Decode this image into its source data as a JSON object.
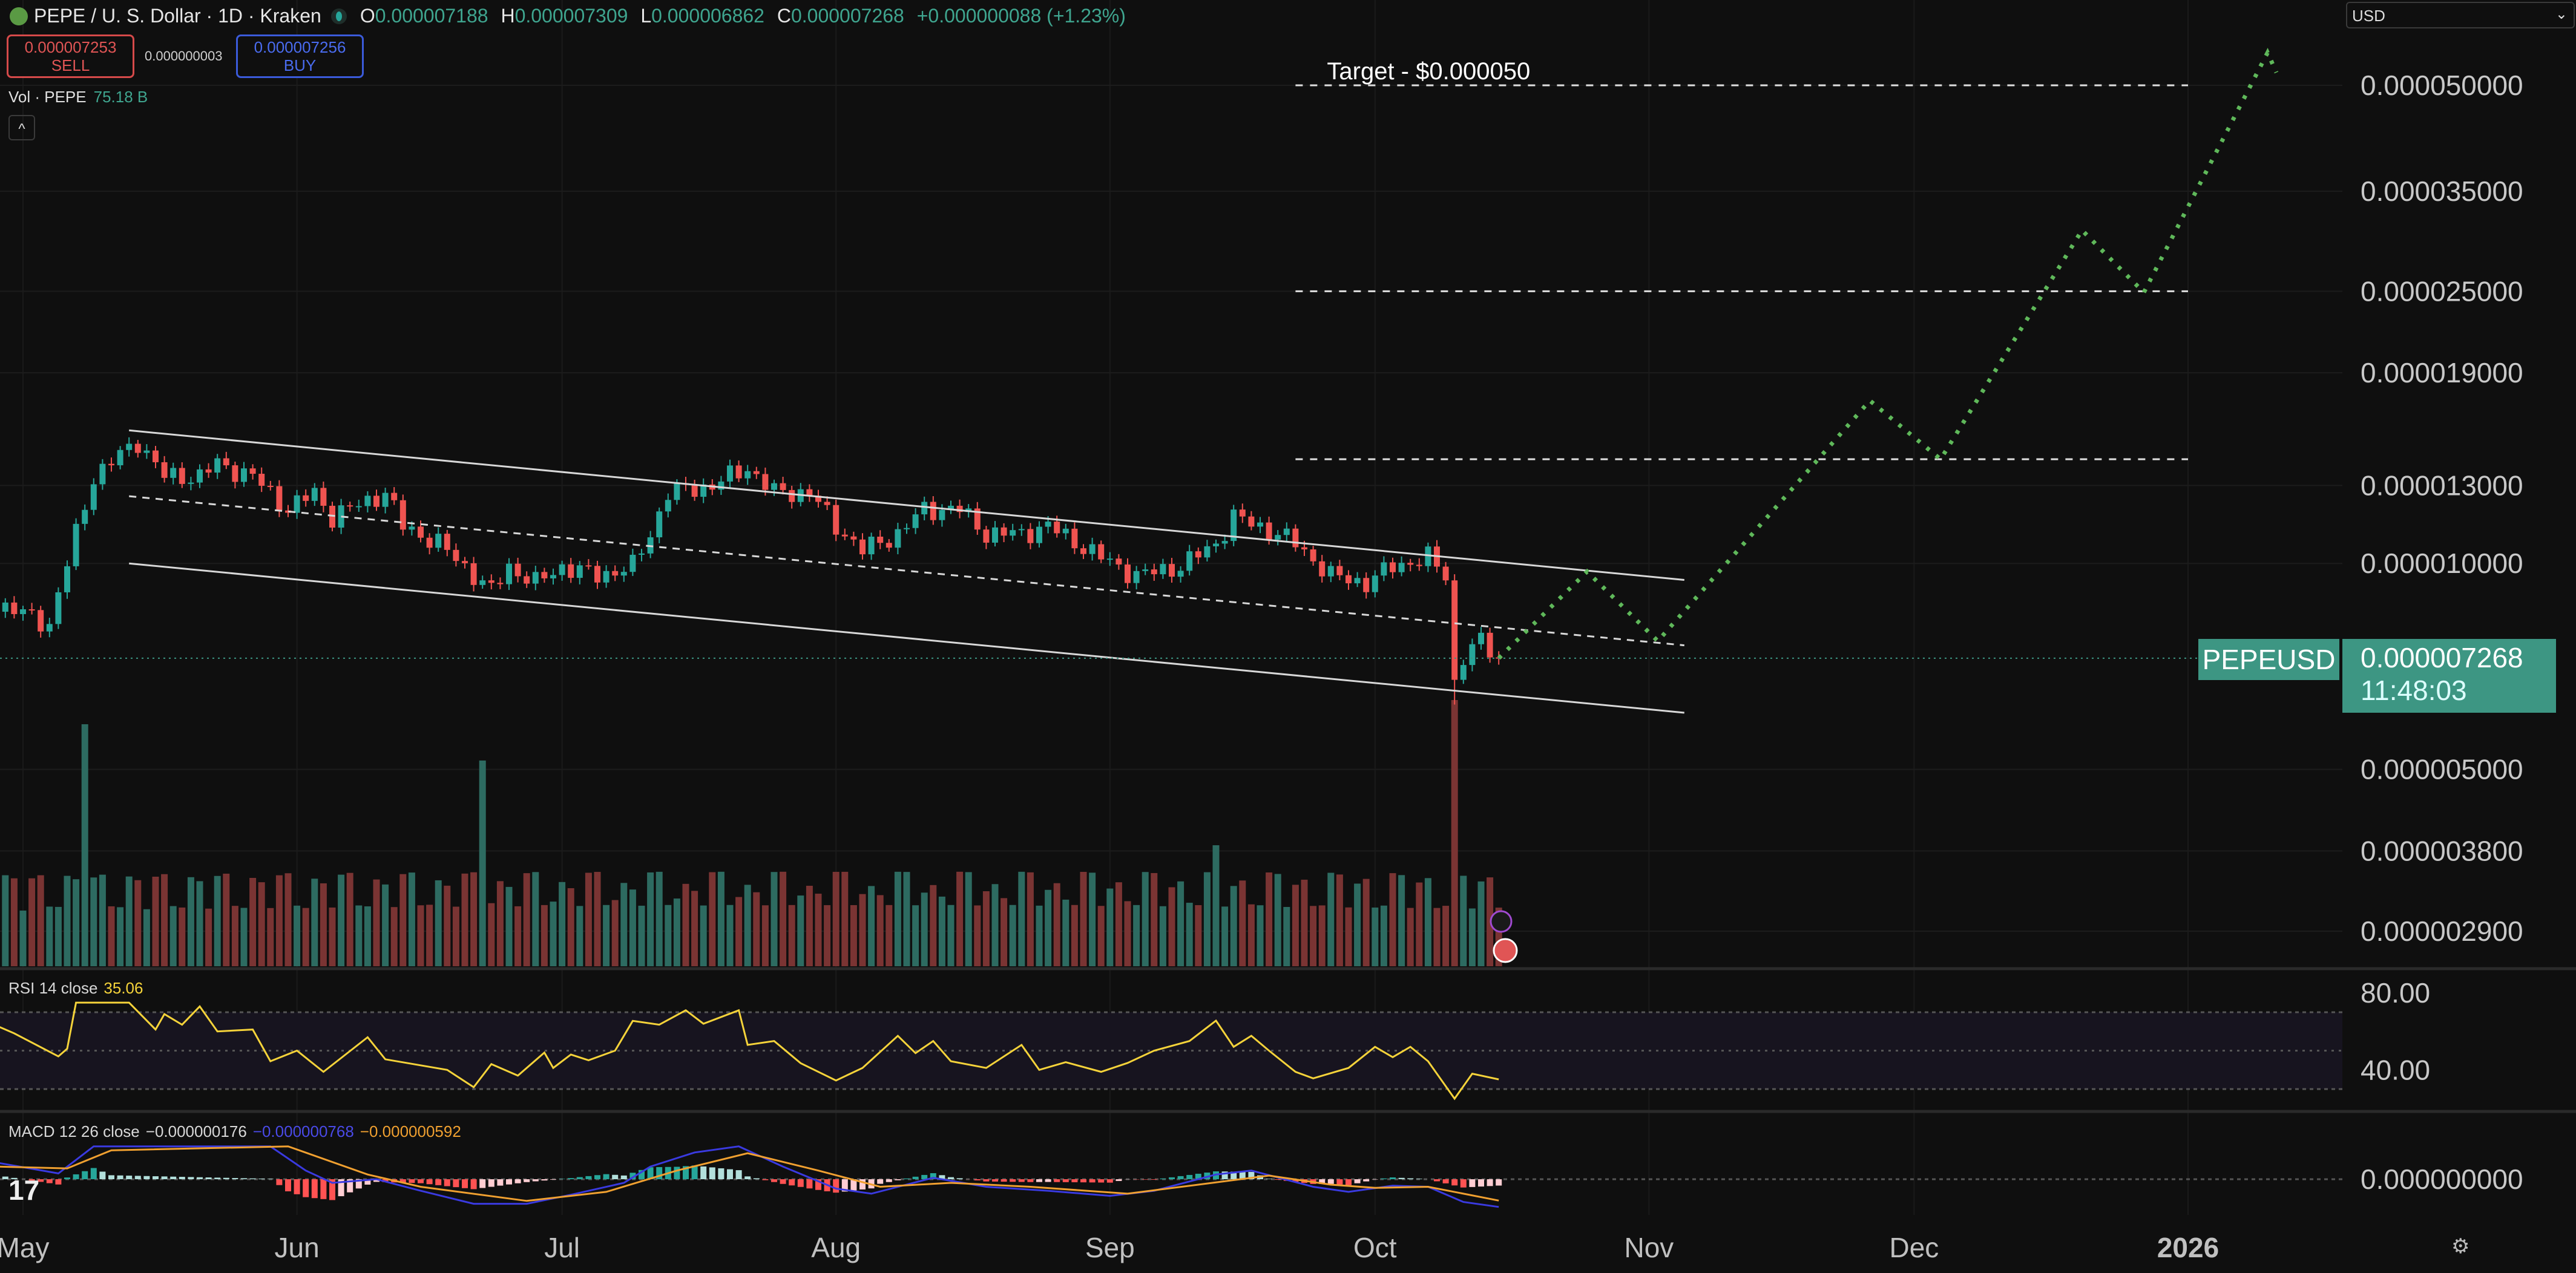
{
  "header": {
    "title": "PEPE / U. S. Dollar · 1D · Kraken",
    "ohlc": [
      {
        "key": "O",
        "value": "0.000007188"
      },
      {
        "key": "H",
        "value": "0.000007309"
      },
      {
        "key": "L",
        "value": "0.000006862"
      },
      {
        "key": "C",
        "value": "0.000007268"
      }
    ],
    "change": "+0.000000088 (+1.23%)",
    "sell_price": "0.000007253",
    "sell_label": "SELL",
    "spread": "0.000000003",
    "buy_price": "0.000007256",
    "buy_label": "BUY",
    "volume_label": "Vol · PEPE",
    "volume_value": "75.18 B",
    "collapse_icon": "chevron-up-icon"
  },
  "currency_select": "USD",
  "symbol_badge": "PEPEUSD",
  "last_price": "0.000007268",
  "countdown": "11:48:03",
  "rsi_legend": {
    "label": "RSI 14 close",
    "value": "35.06"
  },
  "macd_legend": {
    "label": "MACD 12 26 close",
    "hist": "−0.000000176",
    "macd": "−0.000000768",
    "signal": "−0.000000592"
  },
  "colors": {
    "up": "#26a69a",
    "down": "#ef5350",
    "projection": "#5fb85a",
    "rsi": "#f5d33a",
    "macd": "#3a3ae0",
    "signal": "#f0a030"
  },
  "chart_data": {
    "type": "candlestick",
    "scale": "log",
    "price_axis_labels": [
      "0.000050000",
      "0.000035000",
      "0.000025000",
      "0.000019000",
      "0.000013000",
      "0.000010000",
      "0.000005000",
      "0.000003800",
      "0.000002900"
    ],
    "time_axis_labels": [
      {
        "label": "May",
        "date": "2025-05-01"
      },
      {
        "label": "Jun",
        "date": "2025-06-01"
      },
      {
        "label": "Jul",
        "date": "2025-07-01"
      },
      {
        "label": "Aug",
        "date": "2025-08-01"
      },
      {
        "label": "Sep",
        "date": "2025-09-01"
      },
      {
        "label": "Oct",
        "date": "2025-10-01"
      },
      {
        "label": "Nov",
        "date": "2025-11-01"
      },
      {
        "label": "Dec",
        "date": "2025-12-01"
      },
      {
        "label": "2026",
        "date": "2026-01-01"
      }
    ],
    "close_path": [
      [
        "2025-04-27",
        8.85e-06
      ],
      [
        "2025-05-04",
        8.15e-06
      ],
      [
        "2025-05-07",
        1.105e-05
      ],
      [
        "2025-05-09",
        1.34e-05
      ],
      [
        "2025-05-14",
        1.51e-05
      ],
      [
        "2025-05-17",
        1.34e-05
      ],
      [
        "2025-05-21",
        1.34e-05
      ],
      [
        "2025-05-23",
        1.4e-05
      ],
      [
        "2025-05-27",
        1.34e-05
      ],
      [
        "2025-05-31",
        1.2e-05
      ],
      [
        "2025-06-03",
        1.27e-05
      ],
      [
        "2025-06-05",
        1.17e-05
      ],
      [
        "2025-06-11",
        1.27e-05
      ],
      [
        "2025-06-13",
        1.135e-05
      ],
      [
        "2025-06-17",
        1.07e-05
      ],
      [
        "2025-06-20",
        9.9e-06
      ],
      [
        "2025-06-23",
        9.1e-06
      ],
      [
        "2025-06-25",
        9.9e-06
      ],
      [
        "2025-06-28",
        9.36e-06
      ],
      [
        "2025-07-01",
        9.9e-06
      ],
      [
        "2025-07-05",
        9.6e-06
      ],
      [
        "2025-07-09",
        9.9e-06
      ],
      [
        "2025-07-11",
        1.105e-05
      ],
      [
        "2025-07-13",
        1.27e-05
      ],
      [
        "2025-07-18",
        1.3e-05
      ],
      [
        "2025-07-22",
        1.38e-05
      ],
      [
        "2025-07-25",
        1.27e-05
      ],
      [
        "2025-07-29",
        1.27e-05
      ],
      [
        "2025-08-01",
        1.135e-05
      ],
      [
        "2025-08-04",
        1.045e-05
      ],
      [
        "2025-08-08",
        1.105e-05
      ],
      [
        "2025-08-11",
        1.2e-05
      ],
      [
        "2025-08-15",
        1.2e-05
      ],
      [
        "2025-08-18",
        1.105e-05
      ],
      [
        "2025-08-22",
        1.105e-05
      ],
      [
        "2025-08-25",
        1.135e-05
      ],
      [
        "2025-08-31",
        1.02e-05
      ],
      [
        "2025-09-04",
        9.6e-06
      ],
      [
        "2025-09-09",
        9.9e-06
      ],
      [
        "2025-09-13",
        1.07e-05
      ],
      [
        "2025-09-15",
        1.17e-05
      ],
      [
        "2025-09-20",
        1.105e-05
      ],
      [
        "2025-09-22",
        1.07e-05
      ],
      [
        "2025-09-26",
        9.6e-06
      ],
      [
        "2025-09-30",
        9.36e-06
      ],
      [
        "2025-10-03",
        9.9e-06
      ],
      [
        "2025-10-07",
        1.02e-05
      ],
      [
        "2025-10-09",
        9.6e-06
      ],
      [
        "2025-10-10",
        6.7e-06
      ],
      [
        "2025-10-11",
        7.3e-06
      ],
      [
        "2025-10-13",
        7.7e-06
      ],
      [
        "2025-10-15",
        7.268e-06
      ]
    ],
    "volume_spikes": [
      [
        "2025-05-08",
        1.0
      ],
      [
        "2025-06-22",
        0.85
      ],
      [
        "2025-09-13",
        0.5
      ],
      [
        "2025-10-10",
        1.1
      ]
    ],
    "last_price_value": 7.268e-06,
    "channel": {
      "upper": [
        [
          "2025-05-13",
          1.565e-05
        ],
        [
          "2025-11-05",
          9.46e-06
        ]
      ],
      "middle": [
        [
          "2025-05-13",
          1.254e-05
        ],
        [
          "2025-11-05",
          7.59e-06
        ]
      ],
      "lower": [
        [
          "2025-05-13",
          1e-05
        ],
        [
          "2025-11-05",
          6.05e-06
        ]
      ]
    },
    "target_levels": [
      {
        "price": 5e-05,
        "from": "2025-09-22",
        "to": "2026-01-01",
        "label": "Target - $0.000050"
      },
      {
        "price": 2.5e-05,
        "from": "2025-09-22",
        "to": "2026-01-01"
      },
      {
        "price": 1.42e-05,
        "from": "2025-09-22",
        "to": "2026-01-01"
      }
    ],
    "projection_path": [
      [
        "2025-10-15",
        7.27e-06
      ],
      [
        "2025-10-25",
        9.73e-06
      ],
      [
        "2025-11-02",
        7.7e-06
      ],
      [
        "2025-11-26",
        1.73e-05
      ],
      [
        "2025-12-04",
        1.42e-05
      ],
      [
        "2025-12-20",
        3.07e-05
      ],
      [
        "2025-12-27",
        2.49e-05
      ],
      [
        "2026-01-10",
        5.58e-05
      ],
      [
        "2026-01-11",
        5.22e-05
      ]
    ],
    "rsi": {
      "axis_labels": [
        "80.00",
        "40.00"
      ],
      "bands": [
        70,
        50,
        30
      ],
      "points": [
        [
          "2025-04-28",
          63
        ],
        [
          "2025-04-30",
          59
        ],
        [
          "2025-05-05",
          47
        ],
        [
          "2025-05-06",
          51
        ],
        [
          "2025-05-07",
          75
        ],
        [
          "2025-05-13",
          75
        ],
        [
          "2025-05-16",
          61
        ],
        [
          "2025-05-17",
          69
        ],
        [
          "2025-05-19",
          63.5
        ],
        [
          "2025-05-21",
          73
        ],
        [
          "2025-05-23",
          60
        ],
        [
          "2025-05-27",
          61
        ],
        [
          "2025-05-29",
          44.5
        ],
        [
          "2025-06-01",
          50
        ],
        [
          "2025-06-04",
          39
        ],
        [
          "2025-06-09",
          57
        ],
        [
          "2025-06-11",
          45.5
        ],
        [
          "2025-06-18",
          40
        ],
        [
          "2025-06-21",
          31
        ],
        [
          "2025-06-23",
          43
        ],
        [
          "2025-06-26",
          37
        ],
        [
          "2025-06-29",
          49
        ],
        [
          "2025-06-30",
          41
        ],
        [
          "2025-07-02",
          48
        ],
        [
          "2025-07-04",
          45
        ],
        [
          "2025-07-07",
          50
        ],
        [
          "2025-07-09",
          65.5
        ],
        [
          "2025-07-12",
          63.5
        ],
        [
          "2025-07-15",
          71
        ],
        [
          "2025-07-17",
          64
        ],
        [
          "2025-07-21",
          71
        ],
        [
          "2025-07-22",
          53
        ],
        [
          "2025-07-25",
          55
        ],
        [
          "2025-07-28",
          43.5
        ],
        [
          "2025-08-01",
          34.5
        ],
        [
          "2025-08-04",
          41
        ],
        [
          "2025-08-08",
          57.7
        ],
        [
          "2025-08-10",
          48.7
        ],
        [
          "2025-08-12",
          55
        ],
        [
          "2025-08-14",
          44.5
        ],
        [
          "2025-08-18",
          41
        ],
        [
          "2025-08-22",
          53
        ],
        [
          "2025-08-24",
          40
        ],
        [
          "2025-08-27",
          44
        ],
        [
          "2025-08-31",
          39
        ],
        [
          "2025-09-03",
          43.6
        ],
        [
          "2025-09-06",
          50
        ],
        [
          "2025-09-10",
          55
        ],
        [
          "2025-09-13",
          65.6
        ],
        [
          "2025-09-15",
          52
        ],
        [
          "2025-09-17",
          57.7
        ],
        [
          "2025-09-19",
          50
        ],
        [
          "2025-09-22",
          39
        ],
        [
          "2025-09-24",
          35.6
        ],
        [
          "2025-09-28",
          41
        ],
        [
          "2025-10-01",
          52
        ],
        [
          "2025-10-03",
          46.6
        ],
        [
          "2025-10-05",
          52
        ],
        [
          "2025-10-07",
          44.5
        ],
        [
          "2025-10-10",
          25
        ],
        [
          "2025-10-12",
          38
        ],
        [
          "2025-10-15",
          35.06
        ]
      ]
    },
    "macd": {
      "axis_labels": [
        "0.000000000"
      ],
      "macd_line": [
        [
          "2025-04-28",
          4.6e-07
        ],
        [
          "2025-05-05",
          1.6e-07
        ],
        [
          "2025-05-09",
          9.1e-07
        ],
        [
          "2025-05-29",
          9.1e-07
        ],
        [
          "2025-06-02",
          2.4e-07
        ],
        [
          "2025-06-05",
          -1e-07
        ],
        [
          "2025-06-10",
          0
        ],
        [
          "2025-06-15",
          -3.2e-07
        ],
        [
          "2025-06-21",
          -6.8e-07
        ],
        [
          "2025-06-27",
          -6.8e-07
        ],
        [
          "2025-07-02",
          -4.3e-07
        ],
        [
          "2025-07-08",
          -1e-07
        ],
        [
          "2025-07-11",
          3.5e-07
        ],
        [
          "2025-07-16",
          7.4e-07
        ],
        [
          "2025-07-21",
          9.1e-07
        ],
        [
          "2025-07-26",
          3.5e-07
        ],
        [
          "2025-08-01",
          -2.6e-07
        ],
        [
          "2025-08-05",
          -4e-07
        ],
        [
          "2025-08-12",
          4e-08
        ],
        [
          "2025-08-18",
          -2.1e-07
        ],
        [
          "2025-08-25",
          -3.2e-07
        ],
        [
          "2025-09-01",
          -4.6e-07
        ],
        [
          "2025-09-06",
          -3.2e-07
        ],
        [
          "2025-09-13",
          1.3e-07
        ],
        [
          "2025-09-17",
          2.4e-07
        ],
        [
          "2025-09-24",
          -2.1e-07
        ],
        [
          "2025-09-28",
          -3.5e-07
        ],
        [
          "2025-10-03",
          -1.8e-07
        ],
        [
          "2025-10-07",
          -2.1e-07
        ],
        [
          "2025-10-11",
          -6.3e-07
        ],
        [
          "2025-10-15",
          -7.68e-07
        ]
      ],
      "signal_line": [
        [
          "2025-04-28",
          3.5e-07
        ],
        [
          "2025-05-06",
          3e-07
        ],
        [
          "2025-05-11",
          8e-07
        ],
        [
          "2025-05-31",
          9.1e-07
        ],
        [
          "2025-06-09",
          1.3e-07
        ],
        [
          "2025-06-15",
          -2.1e-07
        ],
        [
          "2025-06-27",
          -6e-07
        ],
        [
          "2025-07-06",
          -3.5e-07
        ],
        [
          "2025-07-14",
          2.4e-07
        ],
        [
          "2025-07-22",
          7.2e-07
        ],
        [
          "2025-07-30",
          2.4e-07
        ],
        [
          "2025-08-06",
          -2.1e-07
        ],
        [
          "2025-08-14",
          -1e-07
        ],
        [
          "2025-08-23",
          -2.1e-07
        ],
        [
          "2025-09-03",
          -4e-07
        ],
        [
          "2025-09-11",
          -1.5e-07
        ],
        [
          "2025-09-19",
          1e-07
        ],
        [
          "2025-09-26",
          -1.5e-07
        ],
        [
          "2025-10-01",
          -2.4e-07
        ],
        [
          "2025-10-07",
          -2.1e-07
        ],
        [
          "2025-10-15",
          -5.92e-07
        ]
      ]
    }
  }
}
